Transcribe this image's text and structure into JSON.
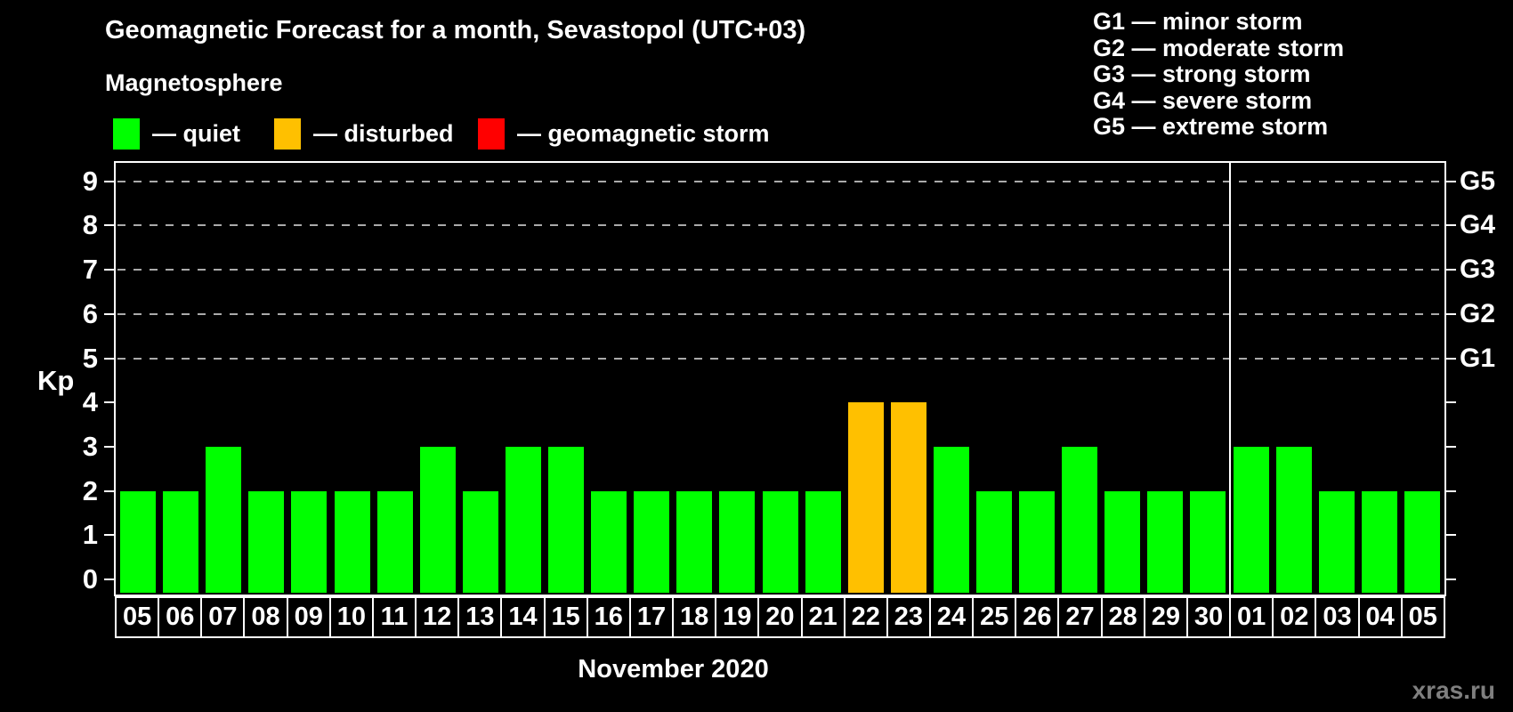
{
  "title": "Geomagnetic Forecast for a month, Sevastopol (UTC+03)",
  "subtitle": "Magnetosphere",
  "legend": {
    "items": [
      {
        "name": "quiet",
        "label": "— quiet",
        "color": "#00ff00"
      },
      {
        "name": "disturbed",
        "label": "— disturbed",
        "color": "#ffc000"
      },
      {
        "name": "storm",
        "label": "— geomagnetic storm",
        "color": "#ff0000"
      }
    ]
  },
  "storm_scale_legend": [
    "G1 — minor storm",
    "G2 — moderate storm",
    "G3 — strong storm",
    "G4 — severe storm",
    "G5 — extreme storm"
  ],
  "watermark": "xras.ru",
  "chart_data": {
    "type": "bar",
    "title": "Geomagnetic Forecast for a month, Sevastopol (UTC+03)",
    "xlabel": "November 2020",
    "ylabel": "Kp",
    "ylim": [
      -0.35,
      9.4
    ],
    "yticks": [
      0,
      1,
      2,
      3,
      4,
      5,
      6,
      7,
      8,
      9
    ],
    "gridlines_at": [
      5,
      6,
      7,
      8,
      9
    ],
    "grid_style": "dashed",
    "legend_position": "top",
    "right_axis_labels": [
      {
        "text": "G1",
        "kp": 5
      },
      {
        "text": "G2",
        "kp": 6
      },
      {
        "text": "G3",
        "kp": 7
      },
      {
        "text": "G4",
        "kp": 8
      },
      {
        "text": "G5",
        "kp": 9
      }
    ],
    "month_separator_after_index": 25,
    "categories": [
      "05",
      "06",
      "07",
      "08",
      "09",
      "10",
      "11",
      "12",
      "13",
      "14",
      "15",
      "16",
      "17",
      "18",
      "19",
      "20",
      "21",
      "22",
      "23",
      "24",
      "25",
      "26",
      "27",
      "28",
      "29",
      "30",
      "01",
      "02",
      "03",
      "04",
      "05"
    ],
    "values": [
      2,
      2,
      3,
      2,
      2,
      2,
      2,
      3,
      2,
      3,
      3,
      2,
      2,
      2,
      2,
      2,
      2,
      4,
      4,
      3,
      2,
      2,
      3,
      2,
      2,
      2,
      3,
      3,
      2,
      2,
      2
    ],
    "statuses": [
      "quiet",
      "quiet",
      "quiet",
      "quiet",
      "quiet",
      "quiet",
      "quiet",
      "quiet",
      "quiet",
      "quiet",
      "quiet",
      "quiet",
      "quiet",
      "quiet",
      "quiet",
      "quiet",
      "quiet",
      "disturbed",
      "disturbed",
      "quiet",
      "quiet",
      "quiet",
      "quiet",
      "quiet",
      "quiet",
      "quiet",
      "quiet",
      "quiet",
      "quiet",
      "quiet",
      "quiet"
    ],
    "status_colors": {
      "quiet": "#00ff00",
      "disturbed": "#ffc000",
      "storm": "#ff0000"
    }
  }
}
